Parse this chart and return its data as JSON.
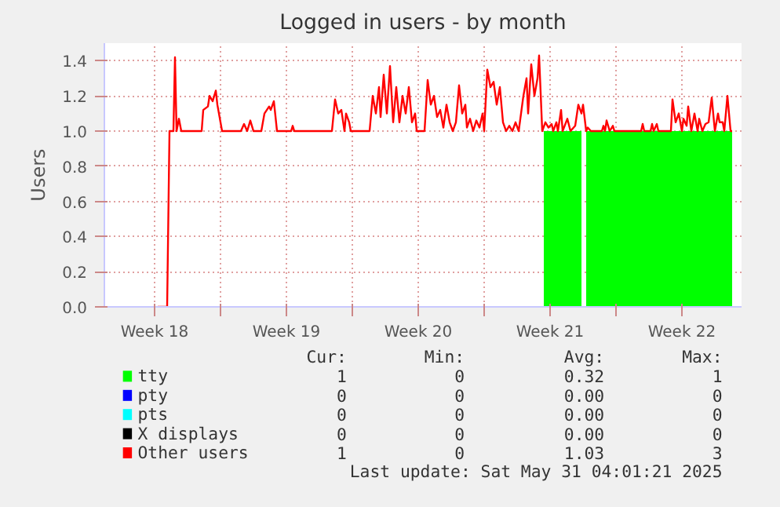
{
  "chart_data": {
    "type": "area",
    "title": "Logged in users - by month",
    "ylabel": "Users",
    "xlim": [
      "2025-04-28T20:00",
      "2025-06-01T16:00"
    ],
    "ylim": [
      0,
      1.5
    ],
    "xticks": [
      {
        "value": "2025-05-01T12:00",
        "label": "Week 18"
      },
      {
        "value": "2025-05-05T00:00",
        "label": null
      },
      {
        "value": "2025-05-08T12:00",
        "label": "Week 19"
      },
      {
        "value": "2025-05-12T00:00",
        "label": null
      },
      {
        "value": "2025-05-15T12:00",
        "label": "Week 20"
      },
      {
        "value": "2025-05-19T00:00",
        "label": null
      },
      {
        "value": "2025-05-22T12:00",
        "label": "Week 21"
      },
      {
        "value": "2025-05-26T00:00",
        "label": null
      },
      {
        "value": "2025-05-29T12:00",
        "label": "Week 22"
      }
    ],
    "yticks": [
      {
        "value": 0,
        "label": "0.0"
      },
      {
        "value": 0.2,
        "label": "0.2"
      },
      {
        "value": 0.4,
        "label": "0.4"
      },
      {
        "value": 0.6,
        "label": "0.6"
      },
      {
        "value": 0.8,
        "label": "0.8"
      },
      {
        "value": 1.0,
        "label": "1.0"
      },
      {
        "value": 1.2,
        "label": "1.2"
      },
      {
        "value": 1.4,
        "label": "1.4"
      }
    ],
    "grid": true,
    "legend": "bottom",
    "series": [
      {
        "name": "tty",
        "color": "#00ff00",
        "x": [
          "2025-05-22T04:00",
          "2025-05-24T04:00",
          "2025-05-24T07:00",
          "2025-05-24T10:00",
          "2025-06-01T04:00"
        ],
        "values": [
          1,
          1,
          null,
          1,
          1
        ]
      },
      {
        "name": "pty",
        "color": "#0000ff",
        "type": "line"
      },
      {
        "name": "pts",
        "color": "#00ffff",
        "type": "line"
      },
      {
        "name": "X displays",
        "color": "#000000",
        "type": "line"
      },
      {
        "name": "Other users",
        "color": "#ff0000",
        "type": "line",
        "x": [
          "2025-05-01T16:00",
          "2025-05-02T04:00",
          "2025-05-02T07:00",
          "2025-05-02T12:00",
          "2025-05-02T14:00",
          "2025-05-02T16:00",
          "2025-05-02T19:00",
          "2025-05-02T22:00",
          "2025-05-04T00:00",
          "2025-05-04T02:00",
          "2025-05-04T08:00",
          "2025-05-04T10:00",
          "2025-05-04T14:00",
          "2025-05-04T18:00",
          "2025-05-04T20:00",
          "2025-05-05T02:00",
          "2025-05-06T02:00",
          "2025-05-06T06:00",
          "2025-05-06T10:00",
          "2025-05-06T14:00",
          "2025-05-06T18:00",
          "2025-05-07T04:00",
          "2025-05-07T08:00",
          "2025-05-07T14:00",
          "2025-05-07T16:00",
          "2025-05-07T20:00",
          "2025-05-08T00:00",
          "2025-05-08T18:00",
          "2025-05-08T20:00",
          "2025-05-08T22:00",
          "2025-05-10T22:00",
          "2025-05-11T02:00",
          "2025-05-11T06:00",
          "2025-05-11T10:00",
          "2025-05-11T14:00",
          "2025-05-11T16:00",
          "2025-05-11T20:00",
          "2025-05-11T22:00",
          "2025-05-12T22:00",
          "2025-05-13T02:00",
          "2025-05-13T06:00",
          "2025-05-13T10:00",
          "2025-05-13T12:00",
          "2025-05-13T16:00",
          "2025-05-13T20:00",
          "2025-05-14T00:00",
          "2025-05-14T04:00",
          "2025-05-14T08:00",
          "2025-05-14T12:00",
          "2025-05-14T16:00",
          "2025-05-14T20:00",
          "2025-05-15T00:00",
          "2025-05-15T04:00",
          "2025-05-15T08:00",
          "2025-05-15T10:00",
          "2025-05-15T20:00",
          "2025-05-16T00:00",
          "2025-05-16T04:00",
          "2025-05-16T08:00",
          "2025-05-16T12:00",
          "2025-05-16T16:00",
          "2025-05-16T20:00",
          "2025-05-17T00:00",
          "2025-05-17T04:00",
          "2025-05-17T08:00",
          "2025-05-17T12:00",
          "2025-05-17T16:00",
          "2025-05-17T20:00",
          "2025-05-18T00:00",
          "2025-05-18T02:00",
          "2025-05-18T06:00",
          "2025-05-18T10:00",
          "2025-05-18T14:00",
          "2025-05-18T18:00",
          "2025-05-18T22:00",
          "2025-05-19T00:00",
          "2025-05-19T04:00",
          "2025-05-19T08:00",
          "2025-05-19T12:00",
          "2025-05-19T16:00",
          "2025-05-19T20:00",
          "2025-05-20T00:00",
          "2025-05-20T04:00",
          "2025-05-20T08:00",
          "2025-05-20T12:00",
          "2025-05-20T16:00",
          "2025-05-20T20:00",
          "2025-05-21T02:00",
          "2025-05-21T06:00",
          "2025-05-21T08:00",
          "2025-05-21T12:00",
          "2025-05-21T16:00",
          "2025-05-21T20:00",
          "2025-05-21T22:00",
          "2025-05-22T02:00",
          "2025-05-22T06:00",
          "2025-05-22T10:00",
          "2025-05-22T14:00",
          "2025-05-22T16:00",
          "2025-05-22T20:00",
          "2025-05-22T22:00",
          "2025-05-23T02:00",
          "2025-05-23T04:00",
          "2025-05-23T10:00",
          "2025-05-23T14:00",
          "2025-05-23T20:00",
          "2025-05-24T00:00",
          "2025-05-24T04:00",
          "2025-05-24T06:00",
          "2025-05-24T10:00",
          "2025-05-24T12:00",
          "2025-05-24T16:00",
          "2025-05-25T06:00",
          "2025-05-25T08:00",
          "2025-05-25T10:00",
          "2025-05-25T12:00",
          "2025-05-25T16:00",
          "2025-05-25T20:00",
          "2025-05-25T22:00",
          "2025-05-27T08:00",
          "2025-05-27T10:00",
          "2025-05-27T12:00",
          "2025-05-27T20:00",
          "2025-05-27T22:00",
          "2025-05-28T00:00",
          "2025-05-28T04:00",
          "2025-05-28T06:00",
          "2025-05-28T22:00",
          "2025-05-29T00:00",
          "2025-05-29T04:00",
          "2025-05-29T08:00",
          "2025-05-29T12:00",
          "2025-05-29T14:00",
          "2025-05-29T18:00",
          "2025-05-29T20:00",
          "2025-05-30T00:00",
          "2025-05-30T04:00",
          "2025-05-30T08:00",
          "2025-05-30T10:00",
          "2025-05-30T14:00",
          "2025-05-30T18:00",
          "2025-05-30T22:00",
          "2025-05-31T02:00",
          "2025-05-31T06:00",
          "2025-05-31T10:00",
          "2025-05-31T12:00",
          "2025-05-31T16:00",
          "2025-05-31T18:00",
          "2025-05-31T22:00",
          "2025-06-01T02:00",
          "2025-06-01T04:00"
        ],
        "values": [
          0,
          0,
          1.0,
          1.0,
          1.42,
          1.0,
          1.07,
          1.0,
          1.0,
          1.12,
          1.14,
          1.2,
          1.17,
          1.23,
          1.15,
          1.0,
          1.0,
          1.04,
          1.0,
          1.06,
          1.0,
          1.0,
          1.1,
          1.14,
          1.12,
          1.17,
          1.0,
          1.0,
          1.03,
          1.0,
          1.0,
          1.18,
          1.1,
          1.12,
          1.0,
          1.1,
          1.05,
          1.0,
          1.0,
          1.2,
          1.1,
          1.25,
          1.08,
          1.32,
          1.1,
          1.37,
          1.05,
          1.25,
          1.05,
          1.2,
          1.1,
          1.25,
          1.05,
          1.1,
          1.0,
          1.0,
          1.29,
          1.15,
          1.2,
          1.08,
          1.12,
          1.02,
          1.15,
          1.05,
          1.0,
          1.05,
          1.26,
          1.1,
          1.15,
          1.02,
          1.07,
          1.0,
          1.06,
          1.02,
          1.1,
          1.0,
          1.35,
          1.25,
          1.28,
          1.15,
          1.25,
          1.05,
          1.0,
          1.03,
          1.0,
          1.05,
          1.0,
          1.2,
          1.3,
          1.1,
          1.38,
          1.2,
          1.3,
          1.43,
          1.0,
          1.05,
          1.02,
          1.04,
          1.0,
          1.05,
          1.0,
          1.12,
          1.0,
          1.07,
          1.0,
          1.03,
          1.15,
          1.1,
          1.15,
          1.0,
          1.02,
          1.0,
          1.0,
          1.03,
          1.0,
          1.06,
          1.0,
          1.03,
          1.0,
          1.0,
          1.04,
          1.0,
          1.0,
          1.04,
          1.0,
          1.04,
          1.0,
          1.0,
          1.18,
          1.05,
          1.1,
          1.0,
          1.07,
          1.03,
          1.14,
          1.0,
          1.1,
          1.0,
          1.07,
          1.0,
          1.04,
          1.05,
          1.19,
          1.0,
          1.1,
          1.05,
          1.05,
          1.0,
          1.2,
          1.0,
          1.0
        ]
      }
    ],
    "annotations": [
      "Cur:",
      "Min:",
      "Avg:",
      "Max:",
      "1",
      "0",
      "0.32",
      "1",
      "0",
      "0",
      "0.00",
      "0",
      "0",
      "0",
      "0.00",
      "0",
      "0",
      "0",
      "0.00",
      "0",
      "1",
      "0",
      "1.03",
      "3",
      "Last update: Sat May 31 04:01:21 2025"
    ]
  }
}
